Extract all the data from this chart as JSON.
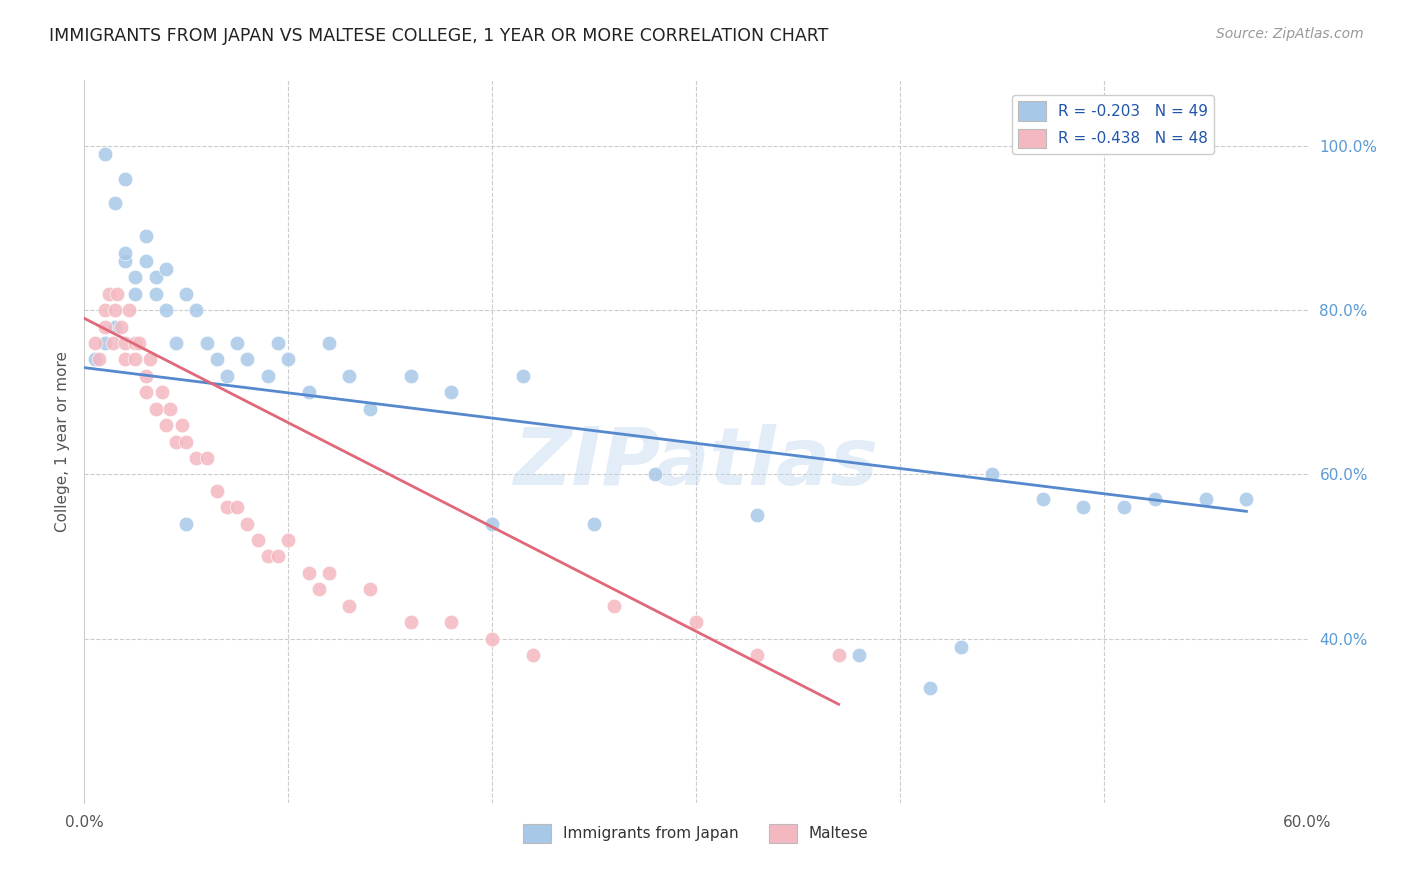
{
  "title": "IMMIGRANTS FROM JAPAN VS MALTESE COLLEGE, 1 YEAR OR MORE CORRELATION CHART",
  "source": "Source: ZipAtlas.com",
  "ylabel": "College, 1 year or more",
  "xlim": [
    0.0,
    0.6
  ],
  "ylim": [
    0.2,
    1.08
  ],
  "legend_label1": "R = -0.203   N = 49",
  "legend_label2": "R = -0.438   N = 48",
  "legend_xlabel1": "Immigrants from Japan",
  "legend_xlabel2": "Maltese",
  "blue_color": "#a8c8e8",
  "pink_color": "#f4b8c0",
  "blue_line_color": "#5588cc",
  "pink_line_color": "#e06878",
  "watermark": "ZIPatlas",
  "blue_x": [
    0.005,
    0.01,
    0.015,
    0.02,
    0.02,
    0.025,
    0.025,
    0.03,
    0.03,
    0.035,
    0.035,
    0.04,
    0.04,
    0.045,
    0.05,
    0.055,
    0.06,
    0.065,
    0.07,
    0.075,
    0.08,
    0.09,
    0.095,
    0.1,
    0.11,
    0.12,
    0.13,
    0.14,
    0.16,
    0.18,
    0.2,
    0.215,
    0.25,
    0.28,
    0.33,
    0.38,
    0.415,
    0.43,
    0.445,
    0.47,
    0.49,
    0.51,
    0.525,
    0.55,
    0.57,
    0.01,
    0.015,
    0.02,
    0.05
  ],
  "blue_y": [
    0.74,
    0.76,
    0.78,
    0.86,
    0.87,
    0.82,
    0.84,
    0.86,
    0.89,
    0.82,
    0.84,
    0.8,
    0.85,
    0.76,
    0.82,
    0.8,
    0.76,
    0.74,
    0.72,
    0.76,
    0.74,
    0.72,
    0.76,
    0.74,
    0.7,
    0.76,
    0.72,
    0.68,
    0.72,
    0.7,
    0.54,
    0.72,
    0.54,
    0.6,
    0.55,
    0.38,
    0.34,
    0.39,
    0.6,
    0.57,
    0.56,
    0.56,
    0.57,
    0.57,
    0.57,
    0.99,
    0.93,
    0.96,
    0.54
  ],
  "pink_x": [
    0.005,
    0.007,
    0.01,
    0.01,
    0.012,
    0.014,
    0.015,
    0.016,
    0.018,
    0.02,
    0.02,
    0.022,
    0.025,
    0.025,
    0.027,
    0.03,
    0.03,
    0.032,
    0.035,
    0.038,
    0.04,
    0.042,
    0.045,
    0.048,
    0.05,
    0.055,
    0.06,
    0.065,
    0.07,
    0.075,
    0.08,
    0.085,
    0.09,
    0.095,
    0.1,
    0.11,
    0.115,
    0.12,
    0.13,
    0.14,
    0.16,
    0.18,
    0.2,
    0.22,
    0.26,
    0.3,
    0.33,
    0.37
  ],
  "pink_y": [
    0.76,
    0.74,
    0.78,
    0.8,
    0.82,
    0.76,
    0.8,
    0.82,
    0.78,
    0.74,
    0.76,
    0.8,
    0.76,
    0.74,
    0.76,
    0.72,
    0.7,
    0.74,
    0.68,
    0.7,
    0.66,
    0.68,
    0.64,
    0.66,
    0.64,
    0.62,
    0.62,
    0.58,
    0.56,
    0.56,
    0.54,
    0.52,
    0.5,
    0.5,
    0.52,
    0.48,
    0.46,
    0.48,
    0.44,
    0.46,
    0.42,
    0.42,
    0.4,
    0.38,
    0.44,
    0.42,
    0.38,
    0.38
  ],
  "blue_line_x": [
    0.0,
    0.57
  ],
  "blue_line_y": [
    0.73,
    0.555
  ],
  "pink_line_x": [
    0.0,
    0.37
  ],
  "pink_line_y": [
    0.79,
    0.32
  ]
}
